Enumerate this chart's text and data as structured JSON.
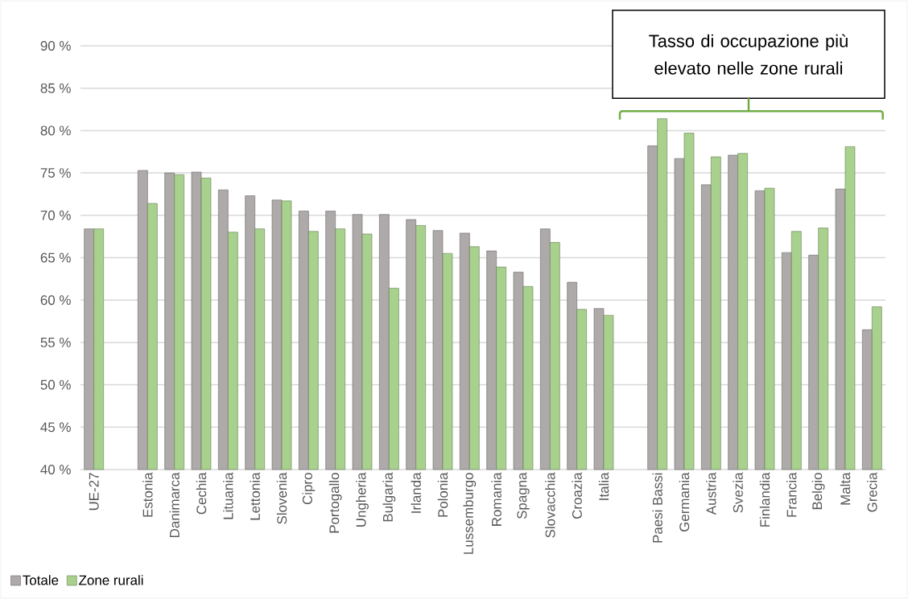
{
  "chart_data": {
    "type": "bar",
    "categories": [
      "UE-27",
      null,
      "Estonia",
      "Danimarca",
      "Cechia",
      "Lituania",
      "Lettonia",
      "Slovenia",
      "Cipro",
      "Portogallo",
      "Ungheria",
      "Bulgaria",
      "Irlanda",
      "Polonia",
      "Lussemburgo",
      "Romania",
      "Spagna",
      "Slovacchia",
      "Croazia",
      "Italia",
      null,
      "Paesi Bassi",
      "Germania",
      "Austria",
      "Svezia",
      "Finlandia",
      "Francia",
      "Belgio",
      "Malta",
      "Grecia"
    ],
    "series": [
      {
        "name": "Totale",
        "color": "#aeaaaa",
        "values": [
          68.4,
          null,
          75.3,
          75.0,
          75.1,
          73.0,
          72.3,
          71.8,
          70.5,
          70.5,
          70.1,
          70.1,
          69.5,
          68.2,
          67.9,
          65.8,
          63.3,
          68.4,
          62.1,
          59.0,
          null,
          78.2,
          76.7,
          73.6,
          77.1,
          72.9,
          65.6,
          65.3,
          73.1,
          56.5
        ]
      },
      {
        "name": "Zone rurali",
        "color": "#a9d18e",
        "values": [
          68.4,
          null,
          71.4,
          74.8,
          74.4,
          68.0,
          68.4,
          71.7,
          68.1,
          68.4,
          67.8,
          61.4,
          68.8,
          65.5,
          66.3,
          63.9,
          61.6,
          66.8,
          58.9,
          58.2,
          null,
          81.4,
          79.7,
          76.9,
          77.3,
          73.2,
          68.1,
          68.5,
          78.1,
          59.2
        ]
      }
    ],
    "ylim": [
      40,
      90
    ],
    "yticks": [
      {
        "value": 40,
        "label": "40 %"
      },
      {
        "value": 45,
        "label": "45 %"
      },
      {
        "value": 50,
        "label": "50 %"
      },
      {
        "value": 55,
        "label": "55 %"
      },
      {
        "value": 60,
        "label": "60 %"
      },
      {
        "value": 65,
        "label": "65 %"
      },
      {
        "value": 70,
        "label": "70 %"
      },
      {
        "value": 75,
        "label": "75 %"
      },
      {
        "value": 80,
        "label": "80 %"
      },
      {
        "value": 85,
        "label": "85 %"
      },
      {
        "value": 90,
        "label": "90 %"
      }
    ],
    "grid": "y",
    "legend": "bottom left",
    "annotations": [
      "Tasso di occupazione più elevato nelle zone rurali"
    ]
  }
}
